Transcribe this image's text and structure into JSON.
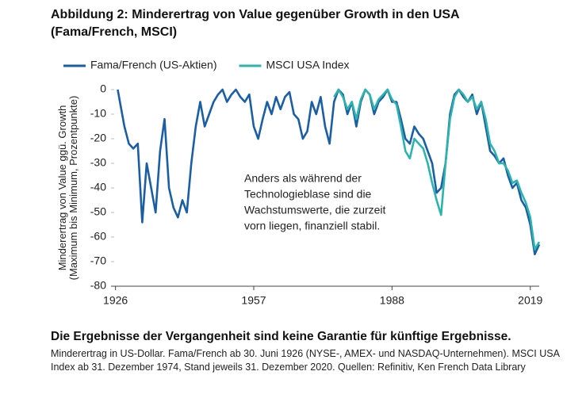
{
  "chart_data": {
    "type": "line",
    "title": "Abbildung 2: Minderertrag von Value gegenüber Growth in den USA (Fama/French, MSCI)",
    "ylabel": [
      "Minderertrag von Value ggü. Growth",
      "(Maximum bis Minimum, Prozentpunkte)"
    ],
    "annotation": [
      "Anders als während der",
      "Technologieblase sind die",
      "Wachstumswerte, die zurzeit",
      "vorn liegen, finanziell stabil."
    ],
    "xlim": [
      1925,
      2021
    ],
    "xticks": [
      1926,
      1957,
      1988,
      2019
    ],
    "ylim": [
      -80,
      0
    ],
    "yticks": [
      0,
      -10,
      -20,
      -30,
      -40,
      -50,
      -60,
      -70,
      -80
    ],
    "grid": false,
    "legend": "top",
    "series": [
      {
        "name": "Fama/French (US-Aktien)",
        "color": "#1b5ea3",
        "x": [
          1926.5,
          1927,
          1928,
          1929,
          1930,
          1931,
          1932,
          1933,
          1934,
          1935,
          1936,
          1937,
          1938,
          1939,
          1940,
          1941,
          1942,
          1943,
          1944,
          1945,
          1946,
          1947,
          1948,
          1949,
          1950,
          1951,
          1952,
          1953,
          1954,
          1955,
          1956,
          1957,
          1958,
          1959,
          1960,
          1961,
          1962,
          1963,
          1964,
          1965,
          1966,
          1967,
          1968,
          1969,
          1970,
          1971,
          1972,
          1973,
          1974,
          1975,
          1976,
          1977,
          1978,
          1979,
          1980,
          1981,
          1982,
          1983,
          1984,
          1985,
          1986,
          1987,
          1988,
          1989,
          1990,
          1991,
          1992,
          1993,
          1994,
          1995,
          1996,
          1997,
          1998,
          1999,
          2000,
          2001,
          2002,
          2003,
          2004,
          2005,
          2006,
          2007,
          2008,
          2009,
          2010,
          2011,
          2012,
          2013,
          2014,
          2015,
          2016,
          2017,
          2018,
          2019,
          2020,
          2021
        ],
        "values": [
          0,
          -5,
          -15,
          -22,
          -24,
          -22,
          -54,
          -30,
          -40,
          -50,
          -25,
          -12,
          -40,
          -48,
          -52,
          -45,
          -50,
          -30,
          -15,
          -5,
          -15,
          -10,
          -5,
          -2,
          0,
          -5,
          -2,
          0,
          -3,
          -5,
          -2,
          -15,
          -20,
          -12,
          -5,
          -10,
          -3,
          -8,
          -3,
          -1,
          -10,
          -12,
          -20,
          -17,
          -5,
          -10,
          -3,
          -15,
          -22,
          -5,
          0,
          -2,
          -10,
          -5,
          -15,
          -5,
          0,
          -2,
          -10,
          -5,
          -3,
          0,
          -5,
          -5,
          -12,
          -20,
          -22,
          -15,
          -18,
          -20,
          -25,
          -30,
          -42,
          -40,
          -30,
          -10,
          -2,
          0,
          -3,
          -5,
          -2,
          -10,
          -5,
          -15,
          -25,
          -27,
          -30,
          -28,
          -35,
          -40,
          -38,
          -45,
          -48,
          -55,
          -67,
          -63
        ]
      },
      {
        "name": "MSCI USA Index",
        "color": "#2db3ad",
        "x": [
          1975,
          1976,
          1977,
          1978,
          1979,
          1980,
          1981,
          1982,
          1983,
          1984,
          1985,
          1986,
          1987,
          1988,
          1989,
          1990,
          1991,
          1992,
          1993,
          1994,
          1995,
          1996,
          1997,
          1998,
          1999,
          2000,
          2001,
          2002,
          2003,
          2004,
          2005,
          2006,
          2007,
          2008,
          2009,
          2010,
          2011,
          2012,
          2013,
          2014,
          2015,
          2016,
          2017,
          2018,
          2019,
          2020,
          2021
        ],
        "values": [
          -3,
          0,
          -3,
          -8,
          -5,
          -12,
          -4,
          0,
          -2,
          -8,
          -4,
          -2,
          0,
          -4,
          -6,
          -15,
          -25,
          -28,
          -20,
          -22,
          -24,
          -30,
          -38,
          -45,
          -51,
          -30,
          -12,
          -3,
          0,
          -2,
          -5,
          -3,
          -8,
          -5,
          -12,
          -22,
          -25,
          -30,
          -30,
          -33,
          -38,
          -37,
          -42,
          -46,
          -52,
          -65,
          -62
        ]
      }
    ]
  },
  "footer": {
    "heading": "Die Ergebnisse der Vergangenheit sind keine Garantie für künftige Ergebnisse.",
    "note": "Minderertrag in US-Dollar. Fama/French ab 30. Juni 1926 (NYSE-, AMEX- und NASDAQ-Unternehmen). MSCI USA Index ab 31. Dezember 1974, Stand jeweils 31. Dezember 2020. Quellen: Refinitiv, Ken French Data Library"
  }
}
